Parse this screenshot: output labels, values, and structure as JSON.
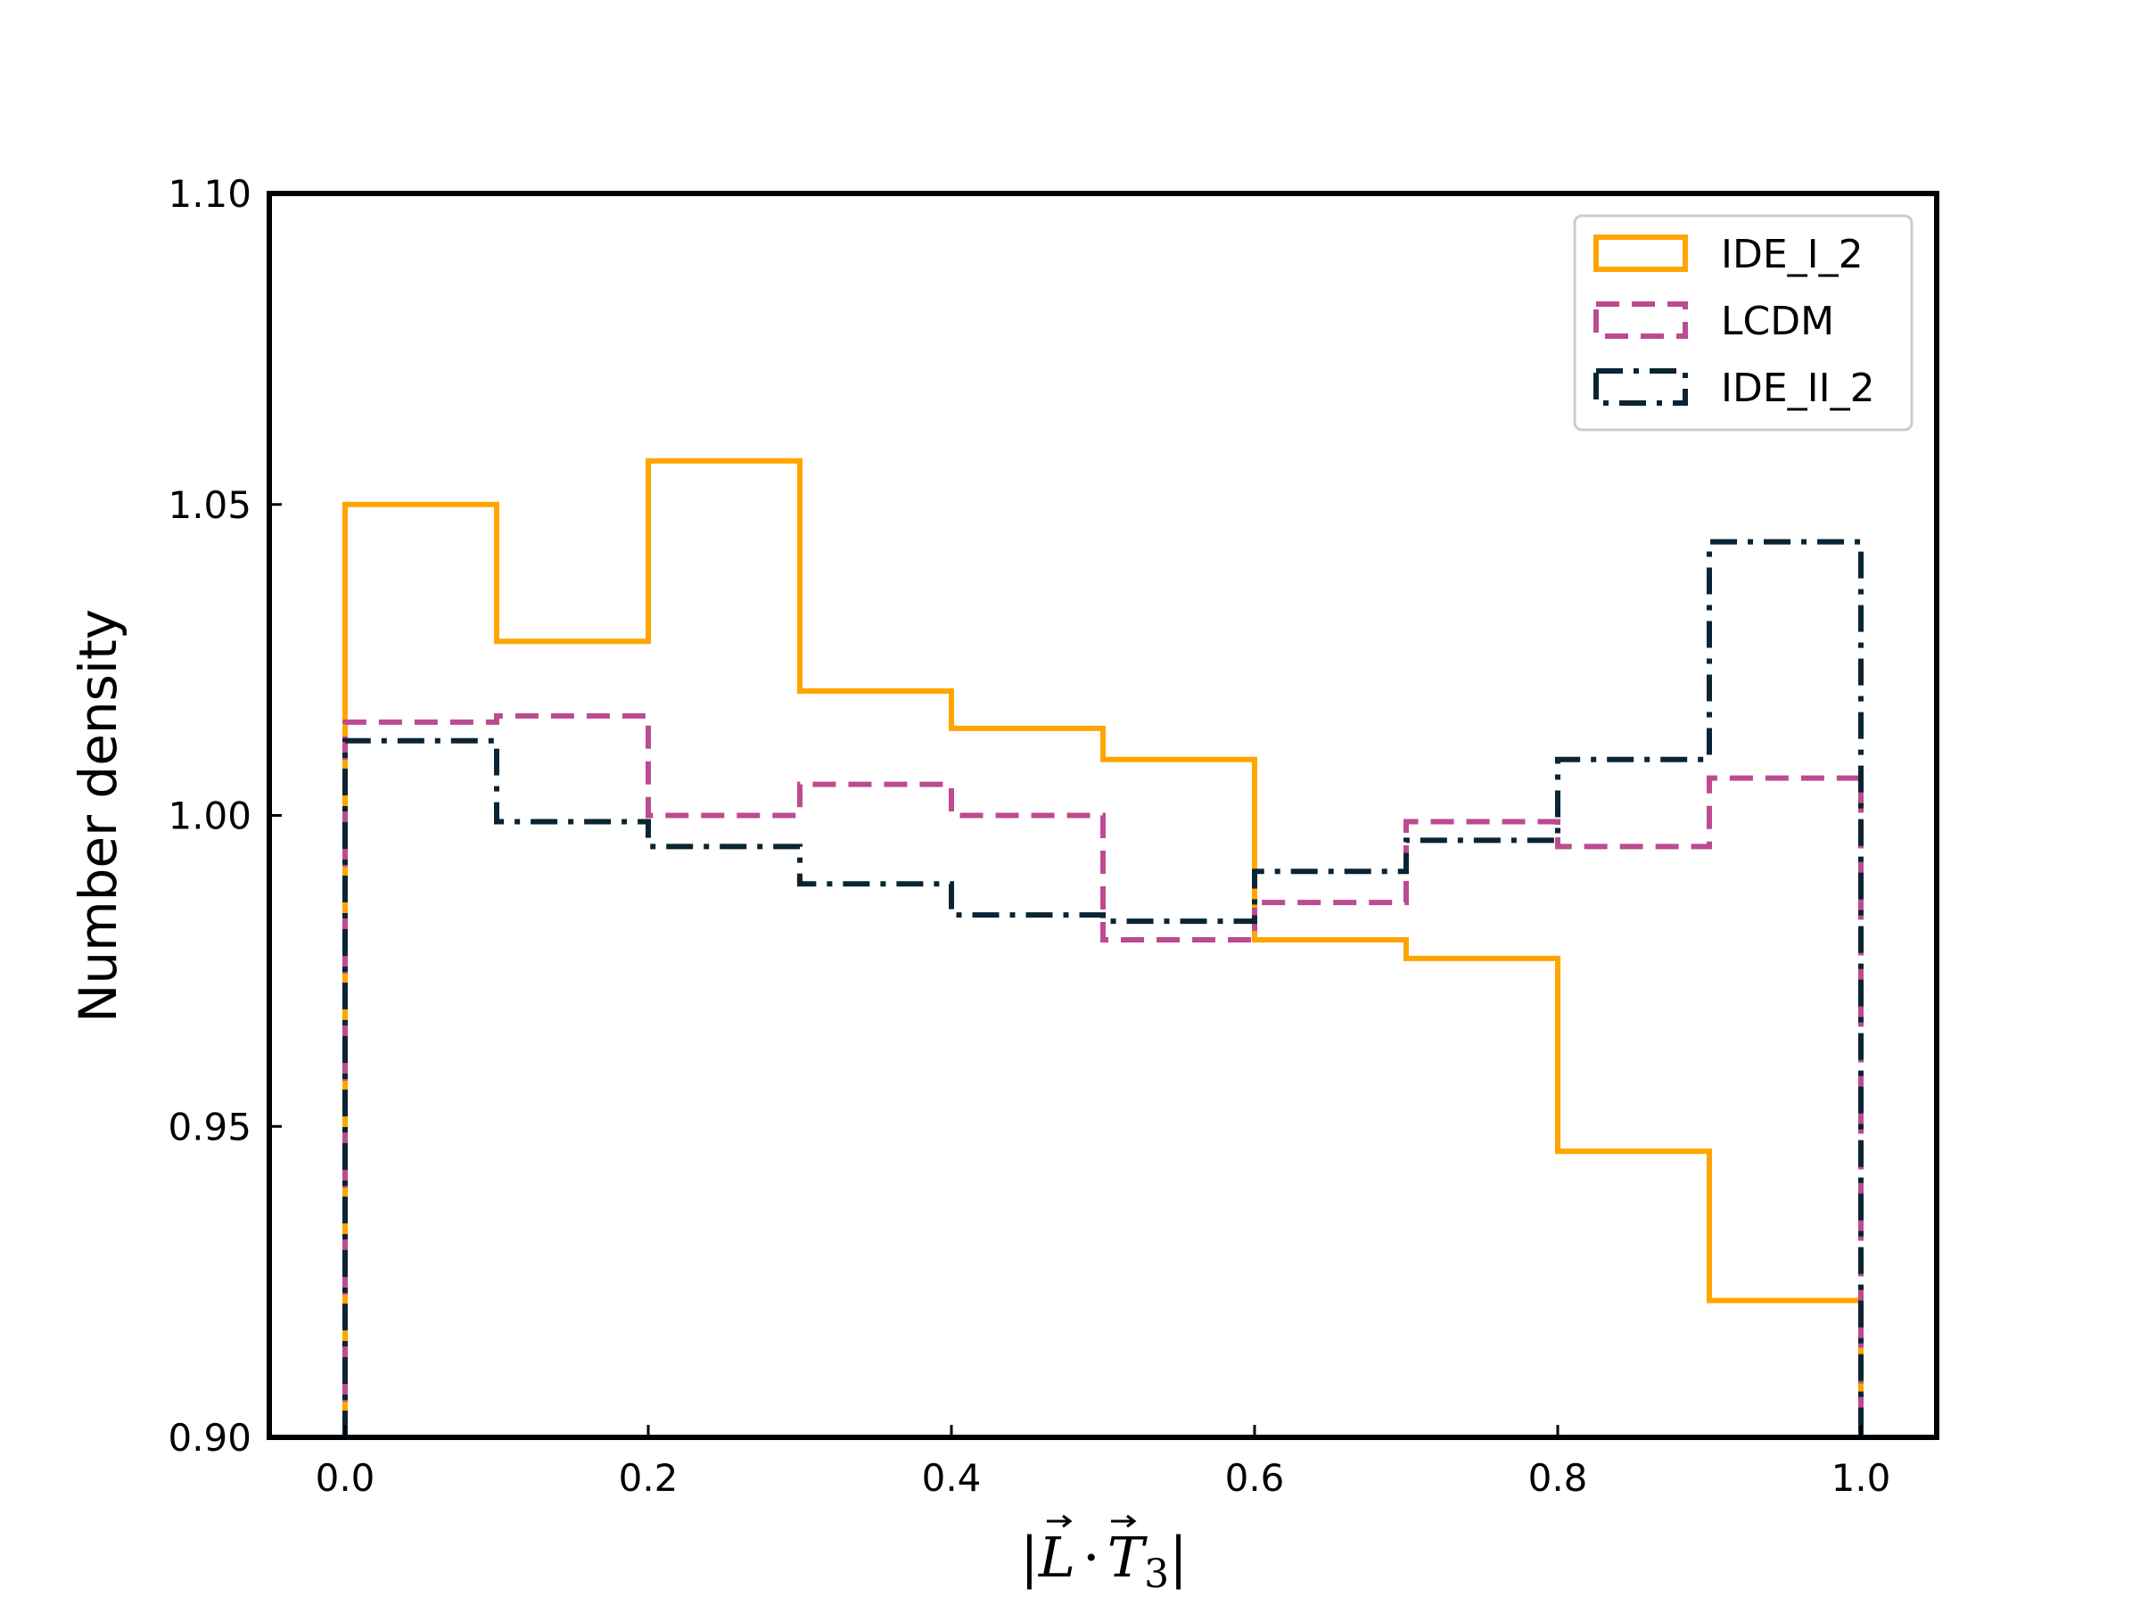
{
  "chart_data": {
    "type": "histogram-step",
    "title": "",
    "xlabel": "|L · T3|",
    "xlabel_parts": {
      "open": "|",
      "vec1": "L",
      "dot": "·",
      "vec2": "T",
      "sub": "3",
      "close": "|"
    },
    "ylabel": "Number density",
    "xlim": [
      -0.05,
      1.05
    ],
    "ylim": [
      0.9,
      1.1
    ],
    "x_ticks": [
      0.0,
      0.2,
      0.4,
      0.6,
      0.8,
      1.0
    ],
    "x_tick_labels": [
      "0.0",
      "0.2",
      "0.4",
      "0.6",
      "0.8",
      "1.0"
    ],
    "y_ticks": [
      0.9,
      0.95,
      1.0,
      1.05,
      1.1
    ],
    "y_tick_labels": [
      "0.90",
      "0.95",
      "1.00",
      "1.05",
      "1.10"
    ],
    "bin_edges": [
      0.0,
      0.1,
      0.2,
      0.3,
      0.4,
      0.5,
      0.6,
      0.7,
      0.8,
      0.9,
      1.0
    ],
    "grid": false,
    "legend_position": "top-right",
    "series": [
      {
        "name": "IDE_I_2",
        "color": "#FFA500",
        "style": "solid",
        "values": [
          1.05,
          1.028,
          1.057,
          1.02,
          1.014,
          1.009,
          0.98,
          0.977,
          0.946,
          0.922
        ]
      },
      {
        "name": "LCDM",
        "color": "#BC4B91",
        "style": "dashed",
        "values": [
          1.015,
          1.016,
          1.0,
          1.005,
          1.0,
          0.98,
          0.986,
          0.999,
          0.995,
          1.006
        ]
      },
      {
        "name": "IDE_II_2",
        "color": "#0B2433",
        "style": "dashdot",
        "values": [
          1.012,
          0.999,
          0.995,
          0.989,
          0.984,
          0.983,
          0.991,
          0.996,
          1.009,
          1.044
        ]
      }
    ]
  }
}
